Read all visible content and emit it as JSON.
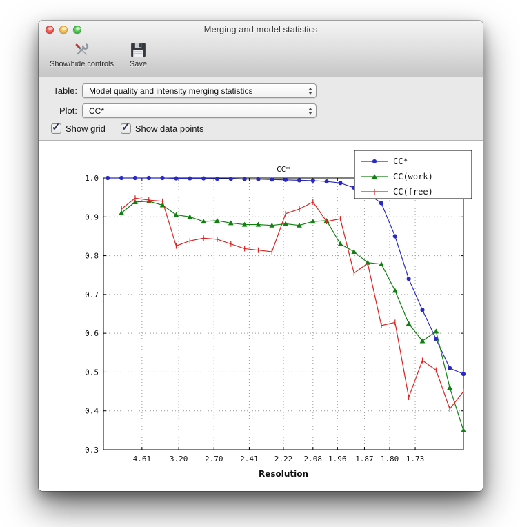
{
  "window": {
    "title": "Merging and model statistics"
  },
  "toolbar": {
    "show_hide_controls_label": "Show/hide controls",
    "save_label": "Save"
  },
  "controls": {
    "table_label": "Table:",
    "table_value": "Model quality and intensity merging statistics",
    "plot_label": "Plot:",
    "plot_value": "CC*",
    "show_grid_label": "Show grid",
    "show_grid_checked": true,
    "show_data_points_label": "Show data points",
    "show_data_points_checked": true
  },
  "icons": {
    "check_glyph": "✓"
  },
  "chart_data": {
    "type": "line",
    "title": "CC*",
    "xlabel": "Resolution",
    "ylabel": "",
    "ylim": [
      0.3,
      1.0
    ],
    "yticks": [
      0.3,
      0.4,
      0.5,
      0.6,
      0.7,
      0.8,
      0.9,
      1.0
    ],
    "xtick_labels": [
      "4.61",
      "3.20",
      "2.70",
      "2.41",
      "2.22",
      "2.08",
      "1.96",
      "1.87",
      "1.80",
      "1.73"
    ],
    "xtick_positions": [
      0.107,
      0.209,
      0.307,
      0.405,
      0.5,
      0.582,
      0.65,
      0.725,
      0.795,
      0.866
    ],
    "x_start_fraction": 0.012,
    "x_end_fraction": 1.0,
    "grid": true,
    "show_markers": true,
    "legend_position": "upper right",
    "series": [
      {
        "name": "CC*",
        "color": "#2929c8",
        "marker": "circle",
        "values": [
          1.0,
          1.0,
          1.0,
          1.0,
          1.0,
          0.999,
          0.999,
          0.999,
          0.998,
          0.998,
          0.997,
          0.997,
          0.996,
          0.995,
          0.994,
          0.993,
          0.991,
          0.987,
          0.975,
          0.96,
          0.935,
          0.85,
          0.74,
          0.66,
          0.585,
          0.51,
          0.495
        ]
      },
      {
        "name": "CC(work)",
        "color": "#108010",
        "marker": "triangle",
        "values": [
          null,
          0.91,
          0.938,
          0.94,
          0.93,
          0.905,
          0.9,
          0.888,
          0.89,
          0.884,
          0.88,
          0.88,
          0.878,
          0.882,
          0.878,
          0.888,
          0.89,
          0.83,
          0.81,
          0.782,
          0.778,
          0.71,
          0.625,
          0.58,
          0.605,
          0.46,
          0.35
        ]
      },
      {
        "name": "CC(free)",
        "color": "#dd2222",
        "marker": "vline",
        "values": [
          null,
          0.92,
          0.948,
          0.943,
          0.94,
          0.825,
          0.838,
          0.845,
          0.842,
          0.83,
          0.818,
          0.814,
          0.81,
          0.908,
          0.92,
          0.938,
          0.888,
          0.895,
          0.755,
          0.78,
          0.62,
          0.628,
          0.435,
          0.53,
          0.505,
          0.405,
          0.45
        ]
      }
    ]
  }
}
